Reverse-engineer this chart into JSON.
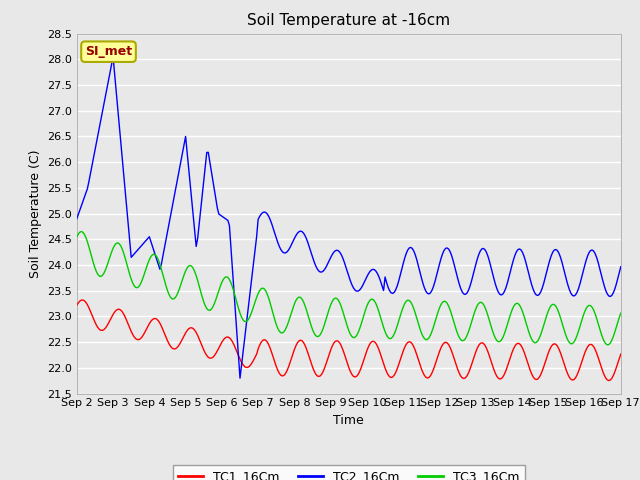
{
  "title": "Soil Temperature at -16cm",
  "xlabel": "Time",
  "ylabel": "Soil Temperature (C)",
  "ylim": [
    21.5,
    28.5
  ],
  "xlim": [
    0,
    15
  ],
  "x_tick_labels": [
    "Sep 2",
    "Sep 3",
    "Sep 4",
    "Sep 5",
    "Sep 6",
    "Sep 7",
    "Sep 8",
    "Sep 9",
    "Sep 10",
    "Sep 11",
    "Sep 12",
    "Sep 13",
    "Sep 14",
    "Sep 15",
    "Sep 16",
    "Sep 17"
  ],
  "yticks": [
    21.5,
    22.0,
    22.5,
    23.0,
    23.5,
    24.0,
    24.5,
    25.0,
    25.5,
    26.0,
    26.5,
    27.0,
    27.5,
    28.0,
    28.5
  ],
  "colors": {
    "TC1": "#ff0000",
    "TC2": "#0000ff",
    "TC3": "#00cc00"
  },
  "legend_labels": [
    "TC1_16Cm",
    "TC2_16Cm",
    "TC3_16Cm"
  ],
  "annotation_text": "SI_met",
  "annotation_bg": "#ffff99",
  "annotation_border": "#aaaa00",
  "annotation_text_color": "#990000",
  "plot_bg": "#e8e8e8",
  "fig_bg": "#e8e8e8",
  "grid_color": "#ffffff",
  "title_fontsize": 11,
  "axis_label_fontsize": 9,
  "tick_fontsize": 8
}
